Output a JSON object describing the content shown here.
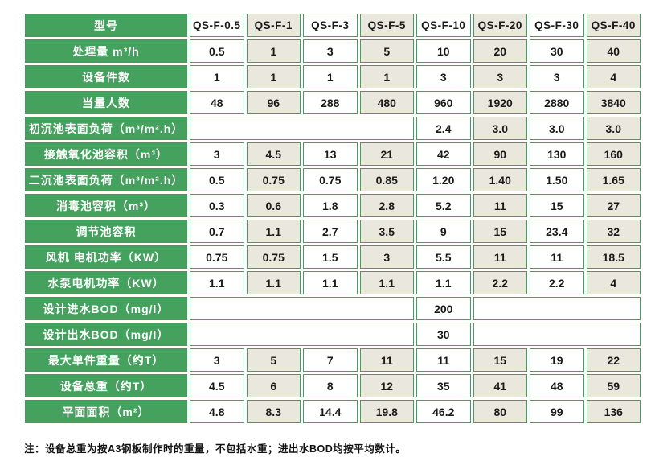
{
  "table": {
    "header_label": "型号",
    "models": [
      "QS-F-0.5",
      "QS-F-1",
      "QS-F-3",
      "QS-F-5",
      "QS-F-10",
      "QS-F-20",
      "QS-F-30",
      "QS-F-40"
    ],
    "rows": [
      {
        "label": "处理量 m³/h",
        "cells": [
          {
            "v": "0.5"
          },
          {
            "v": "1"
          },
          {
            "v": "3"
          },
          {
            "v": "5"
          },
          {
            "v": "10"
          },
          {
            "v": "20"
          },
          {
            "v": "30"
          },
          {
            "v": "40"
          }
        ]
      },
      {
        "label": "设备件数",
        "cells": [
          {
            "v": "1"
          },
          {
            "v": "1"
          },
          {
            "v": "1"
          },
          {
            "v": "1"
          },
          {
            "v": "3"
          },
          {
            "v": "3"
          },
          {
            "v": "3"
          },
          {
            "v": "4"
          }
        ]
      },
      {
        "label": "当量人数",
        "cells": [
          {
            "v": "48"
          },
          {
            "v": "96"
          },
          {
            "v": "288"
          },
          {
            "v": "480"
          },
          {
            "v": "960"
          },
          {
            "v": "1920"
          },
          {
            "v": "2880"
          },
          {
            "v": "3840"
          }
        ]
      },
      {
        "label": "初沉池表面负荷（m³/m².h）",
        "cells": [
          {
            "v": "",
            "span": 4
          },
          {
            "v": "2.4"
          },
          {
            "v": "3.0"
          },
          {
            "v": "3.0"
          },
          {
            "v": "3.0"
          }
        ]
      },
      {
        "label": "接触氧化池容积（m³）",
        "cells": [
          {
            "v": "3"
          },
          {
            "v": "4.5"
          },
          {
            "v": "13"
          },
          {
            "v": "21"
          },
          {
            "v": "42"
          },
          {
            "v": "90"
          },
          {
            "v": "130"
          },
          {
            "v": "160"
          }
        ]
      },
      {
        "label": "二沉池表面负荷（m³/m².h）",
        "cells": [
          {
            "v": "0.5"
          },
          {
            "v": "0.75"
          },
          {
            "v": "0.75"
          },
          {
            "v": "0.85"
          },
          {
            "v": "1.20"
          },
          {
            "v": "1.40"
          },
          {
            "v": "1.50"
          },
          {
            "v": "1.65"
          }
        ]
      },
      {
        "label": "消毒池容积（m³）",
        "cells": [
          {
            "v": "0.3"
          },
          {
            "v": "0.6"
          },
          {
            "v": "1.8"
          },
          {
            "v": "2.8"
          },
          {
            "v": "5.2"
          },
          {
            "v": "11"
          },
          {
            "v": "15"
          },
          {
            "v": "27"
          }
        ]
      },
      {
        "label": "调节池容积",
        "cells": [
          {
            "v": "0.7"
          },
          {
            "v": "1.1"
          },
          {
            "v": "2.7"
          },
          {
            "v": "3.5"
          },
          {
            "v": "9"
          },
          {
            "v": "15"
          },
          {
            "v": "23.4"
          },
          {
            "v": "32"
          }
        ]
      },
      {
        "label": "风机 电机功率（KW）",
        "cells": [
          {
            "v": "0.75"
          },
          {
            "v": "0.75"
          },
          {
            "v": "1.5"
          },
          {
            "v": "3"
          },
          {
            "v": "5.5"
          },
          {
            "v": "11"
          },
          {
            "v": "11"
          },
          {
            "v": "18.5"
          }
        ]
      },
      {
        "label": "水泵电机功率（KW）",
        "cells": [
          {
            "v": "1.1"
          },
          {
            "v": "1.1"
          },
          {
            "v": "1.1"
          },
          {
            "v": "1.1"
          },
          {
            "v": "1.1"
          },
          {
            "v": "2.2"
          },
          {
            "v": "2.2"
          },
          {
            "v": "4"
          }
        ]
      },
      {
        "label": "设计进水BOD（mg/l）",
        "cells": [
          {
            "v": "",
            "span": 4
          },
          {
            "v": "200"
          },
          {
            "v": "",
            "span": 3
          }
        ]
      },
      {
        "label": "设计出水BOD（mg/l）",
        "cells": [
          {
            "v": "",
            "span": 4
          },
          {
            "v": "30"
          },
          {
            "v": "",
            "span": 3
          }
        ]
      },
      {
        "label": "最大单件重量（约T）",
        "cells": [
          {
            "v": "3"
          },
          {
            "v": "5"
          },
          {
            "v": "7"
          },
          {
            "v": "11"
          },
          {
            "v": "11"
          },
          {
            "v": "15"
          },
          {
            "v": "19"
          },
          {
            "v": "22"
          }
        ]
      },
      {
        "label": "设备总重（约T）",
        "cells": [
          {
            "v": "4.5"
          },
          {
            "v": "6"
          },
          {
            "v": "8"
          },
          {
            "v": "12"
          },
          {
            "v": "35"
          },
          {
            "v": "41"
          },
          {
            "v": "48"
          },
          {
            "v": "59"
          }
        ]
      },
      {
        "label": "平面面积（m²）",
        "cells": [
          {
            "v": "4.8"
          },
          {
            "v": "8.3"
          },
          {
            "v": "14.4"
          },
          {
            "v": "19.8"
          },
          {
            "v": "46.2"
          },
          {
            "v": "80"
          },
          {
            "v": "99"
          },
          {
            "v": "136"
          }
        ]
      }
    ]
  },
  "note": "注：设备总重为按A3钢板制作时的重量，不包括水重；进出水BOD均按平均数计。",
  "colors": {
    "label_green": "#44a15e",
    "border_green": "#3aa35f",
    "cell_beige": "#eae7dc",
    "cell_white": "#ffffff",
    "text_dark": "#1a1a1a",
    "label_text": "#ffffff"
  }
}
